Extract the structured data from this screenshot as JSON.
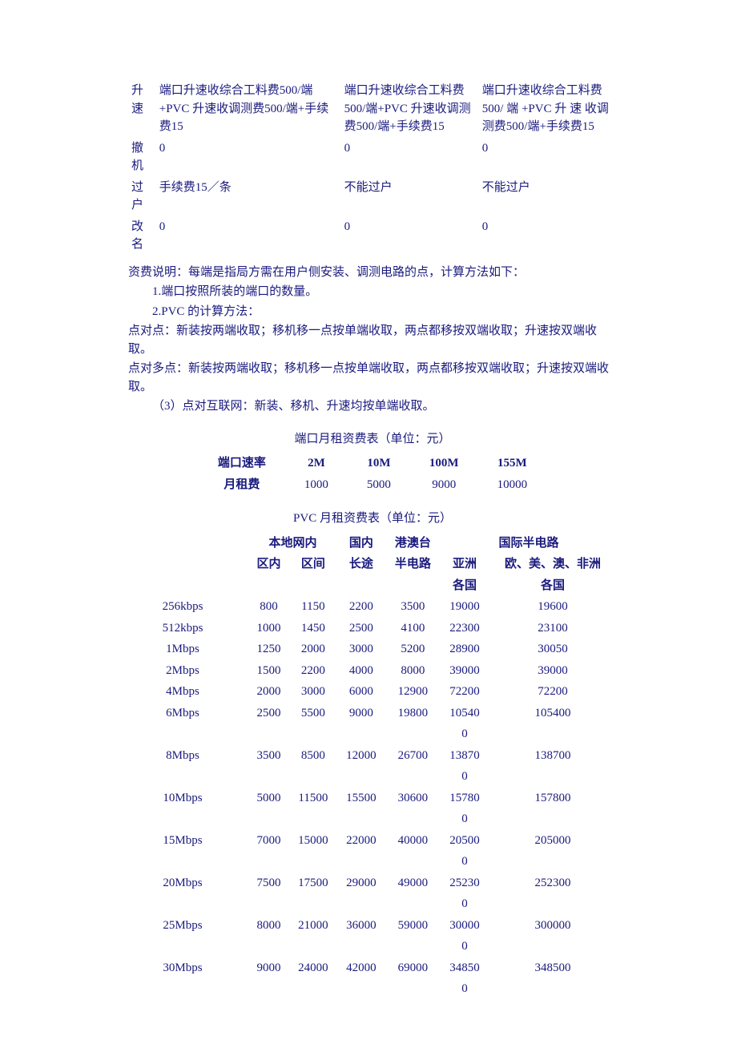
{
  "colors": {
    "text": "#1a1a7e",
    "background": "#ffffff"
  },
  "typography": {
    "font_family": "SimSun",
    "base_fontsize_pt": 11
  },
  "table1": {
    "rows": [
      {
        "label": "升速",
        "c1": "端口升速收综合工料费500/端+PVC 升速收调测费500/端+手续费15",
        "c2": "端口升速收综合工料费500/端+PVC 升速收调测费500/端+手续费15",
        "c3": "端口升速收综合工料费500/ 端 +PVC 升 速 收调测费500/端+手续费15"
      },
      {
        "label": "撤机",
        "c1": "0",
        "c2": "0",
        "c3": "0"
      },
      {
        "label": "过户",
        "c1": "手续费15／条",
        "c2": "不能过户",
        "c3": "不能过户"
      },
      {
        "label": "改名",
        "c1": "0",
        "c2": "0",
        "c3": "0"
      }
    ]
  },
  "notes": {
    "l1": "资费说明：每端是指局方需在用户侧安装、调测电路的点，计算方法如下：",
    "l2": "1.端口按照所装的端口的数量。",
    "l3": "2.PVC 的计算方法：",
    "l4": "点对点：新装按两端收取；移机移一点按单端收取，两点都移按双端收取；升速按双端收取。",
    "l5": "点对多点：新装按两端收取；移机移一点按单端收取，两点都移按双端收取；升速按双端收取。",
    "l6": "（3）点对互联网：新装、移机、升速均按单端收取。"
  },
  "port_table": {
    "title": "端口月租资费表（单位：元）",
    "header_rate": "端口速率",
    "header_fee": "月租费",
    "cols": [
      "2M",
      "10M",
      "100M",
      "155M"
    ],
    "fees": [
      "1000",
      "5000",
      "9000",
      "10000"
    ]
  },
  "pvc_table": {
    "title": "PVC 月租资费表（单位：元）",
    "group_headers": {
      "local": "本地网内",
      "domestic": "国内",
      "hkmo": "港澳台",
      "intl": "国际半电路"
    },
    "sub_headers": {
      "local_in": "区内",
      "local_between": "区间",
      "domestic": "长途",
      "hkmo": "半电路",
      "intl_asia_l1": "亚洲",
      "intl_asia_l2": "各国",
      "intl_other_l1": "欧、美、澳、非洲",
      "intl_other_l2": "各国"
    },
    "rows": [
      {
        "rate": "256kbps",
        "v": [
          "800",
          "1150",
          "2200",
          "3500",
          "19000",
          "19600"
        ]
      },
      {
        "rate": "512kbps",
        "v": [
          "1000",
          "1450",
          "2500",
          "4100",
          "22300",
          "23100"
        ]
      },
      {
        "rate": "1Mbps",
        "v": [
          "1250",
          "2000",
          "3000",
          "5200",
          "28900",
          "30050"
        ]
      },
      {
        "rate": "2Mbps",
        "v": [
          "1500",
          "2200",
          "4000",
          "8000",
          "39000",
          "39000"
        ]
      },
      {
        "rate": "4Mbps",
        "v": [
          "2000",
          "3000",
          "6000",
          "12900",
          "72200",
          "72200"
        ]
      },
      {
        "rate": "6Mbps",
        "v": [
          "2500",
          "5500",
          "9000",
          "19800",
          "105400",
          "105400"
        ]
      },
      {
        "rate": "8Mbps",
        "v": [
          "3500",
          "8500",
          "12000",
          "26700",
          "138700",
          "138700"
        ]
      },
      {
        "rate": "10Mbps",
        "v": [
          "5000",
          "11500",
          "15500",
          "30600",
          "157800",
          "157800"
        ]
      },
      {
        "rate": "15Mbps",
        "v": [
          "7000",
          "15000",
          "22000",
          "40000",
          "205000",
          "205000"
        ]
      },
      {
        "rate": "20Mbps",
        "v": [
          "7500",
          "17500",
          "29000",
          "49000",
          "252300",
          "252300"
        ]
      },
      {
        "rate": "25Mbps",
        "v": [
          "8000",
          "21000",
          "36000",
          "59000",
          "300000",
          "300000"
        ]
      },
      {
        "rate": "30Mbps",
        "v": [
          "9000",
          "24000",
          "42000",
          "69000",
          "348500",
          "348500"
        ]
      }
    ],
    "asia_col_wrap_width_chars": 5
  }
}
